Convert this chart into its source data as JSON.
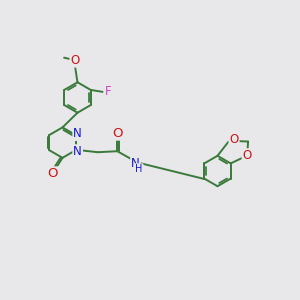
{
  "bg_color": "#e8e8eb",
  "bond_color": "#3a7a3a",
  "bond_width": 1.4,
  "dbo": 0.035,
  "atom_colors": {
    "N": "#1515cc",
    "O": "#cc1515",
    "F": "#cc44cc",
    "C": "#3a7a3a"
  },
  "fs": 8.5,
  "fig_w": 3.0,
  "fig_h": 3.0,
  "dpi": 100
}
